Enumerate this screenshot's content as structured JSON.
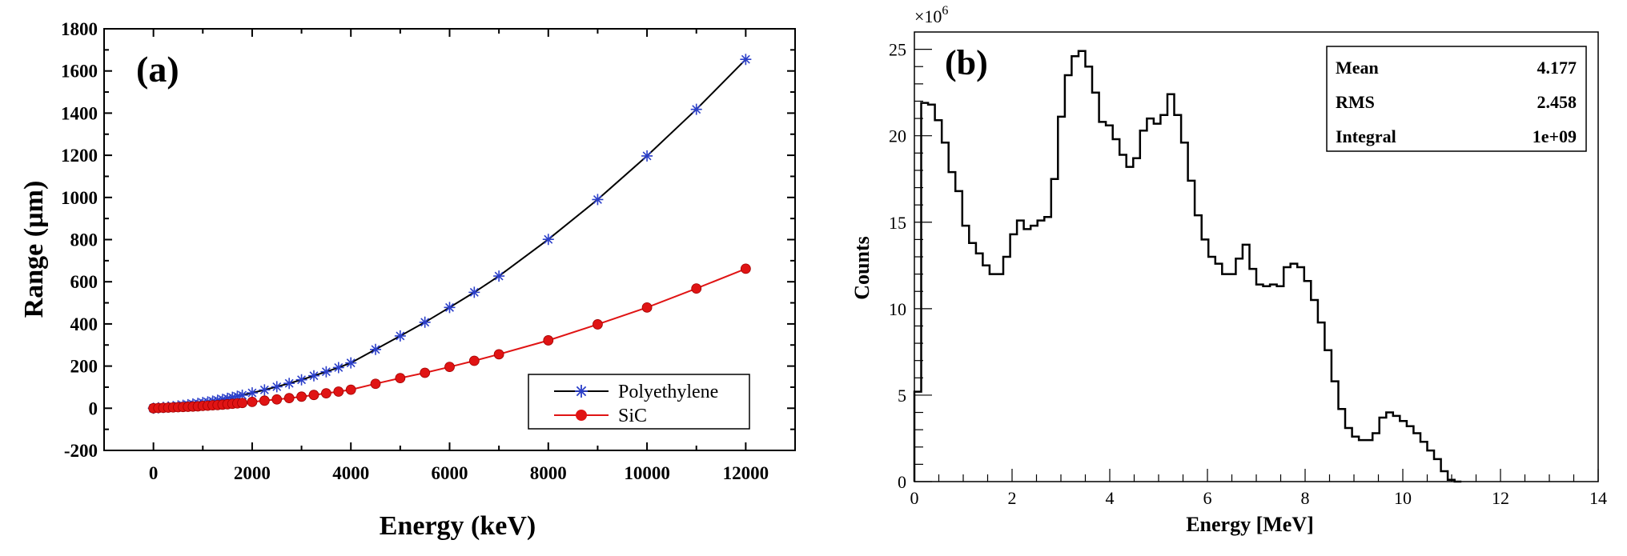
{
  "chart_data": [
    {
      "type": "line",
      "panel_label": "(a)",
      "xlabel": "Energy (keV)",
      "ylabel": "Range (µm)",
      "xlim": [
        -1000,
        13000
      ],
      "ylim": [
        -200,
        1800
      ],
      "xticks": [
        0,
        2000,
        4000,
        6000,
        8000,
        10000,
        12000
      ],
      "yticks": [
        -200,
        0,
        200,
        400,
        600,
        800,
        1000,
        1200,
        1400,
        1600,
        1800
      ],
      "legend_position": "bottom-right",
      "grid": false,
      "series": [
        {
          "name": "Polyethylene",
          "line_color": "#000000",
          "marker_color": "#2b3fc9",
          "marker": "asterisk",
          "x": [
            0,
            100,
            200,
            300,
            400,
            500,
            600,
            700,
            800,
            900,
            1000,
            1100,
            1200,
            1300,
            1400,
            1500,
            1600,
            1700,
            1800,
            2000,
            2250,
            2500,
            2750,
            3000,
            3250,
            3500,
            3750,
            4000,
            4500,
            5000,
            5500,
            6000,
            6500,
            7000,
            8000,
            9000,
            10000,
            11000,
            12000
          ],
          "y": [
            0,
            2,
            4,
            6,
            8,
            11,
            14,
            17,
            20,
            23,
            27,
            30,
            34,
            38,
            42,
            47,
            52,
            57,
            62,
            73,
            87,
            102,
            118,
            135,
            154,
            173,
            193,
            215,
            279,
            343,
            408,
            478,
            550,
            627,
            801,
            990,
            1197,
            1418,
            1655
          ]
        },
        {
          "name": "SiC",
          "line_color": "#e01414",
          "marker_color": "#e01414",
          "marker": "circle",
          "x": [
            0,
            100,
            200,
            300,
            400,
            500,
            600,
            700,
            800,
            900,
            1000,
            1100,
            1200,
            1300,
            1400,
            1500,
            1600,
            1700,
            1800,
            2000,
            2250,
            2500,
            2750,
            3000,
            3250,
            3500,
            3750,
            4000,
            4500,
            5000,
            5500,
            6000,
            6500,
            7000,
            8000,
            9000,
            10000,
            11000,
            12000
          ],
          "y": [
            0,
            1,
            2,
            3,
            4,
            5,
            6,
            7,
            8,
            9,
            11,
            12,
            14,
            15,
            17,
            19,
            21,
            23,
            25,
            30,
            36,
            42,
            48,
            55,
            63,
            71,
            79,
            88,
            116,
            143,
            168,
            196,
            225,
            256,
            322,
            398,
            478,
            568,
            662
          ]
        }
      ]
    },
    {
      "type": "histogram",
      "panel_label": "(b)",
      "xlabel": "Energy [MeV]",
      "ylabel": "Counts",
      "y_exponent_label": "×10",
      "y_exponent_power": "6",
      "xlim": [
        0,
        14
      ],
      "ylim": [
        0,
        26
      ],
      "xticks": [
        0,
        2,
        4,
        6,
        8,
        10,
        12,
        14
      ],
      "yticks": [
        0,
        5,
        10,
        15,
        20,
        25
      ],
      "bin_width": 0.14,
      "bin_values": [
        5.2,
        21.9,
        21.8,
        20.9,
        19.6,
        17.9,
        16.8,
        14.8,
        13.8,
        13.2,
        12.5,
        12.0,
        12.0,
        13.0,
        14.3,
        15.1,
        14.6,
        14.8,
        15.1,
        15.3,
        17.5,
        21.1,
        23.5,
        24.6,
        24.9,
        24.0,
        22.5,
        20.8,
        20.6,
        19.8,
        18.9,
        18.2,
        18.7,
        20.3,
        21.0,
        20.7,
        21.2,
        22.4,
        21.2,
        19.6,
        17.4,
        15.4,
        14.0,
        13.0,
        12.6,
        12.0,
        12.0,
        12.9,
        13.7,
        12.3,
        11.4,
        11.3,
        11.4,
        11.3,
        12.4,
        12.6,
        12.4,
        11.6,
        10.5,
        9.2,
        7.6,
        5.8,
        4.2,
        3.1,
        2.6,
        2.4,
        2.4,
        2.8,
        3.7,
        4.0,
        3.8,
        3.5,
        3.2,
        2.8,
        2.3,
        1.8,
        1.3,
        0.6,
        0.1,
        0.0
      ],
      "stats_box": {
        "rows": [
          {
            "label": "Mean",
            "value": "4.177"
          },
          {
            "label": "RMS",
            "value": "2.458"
          },
          {
            "label": "Integral",
            "value": "1e+09"
          }
        ]
      }
    }
  ]
}
